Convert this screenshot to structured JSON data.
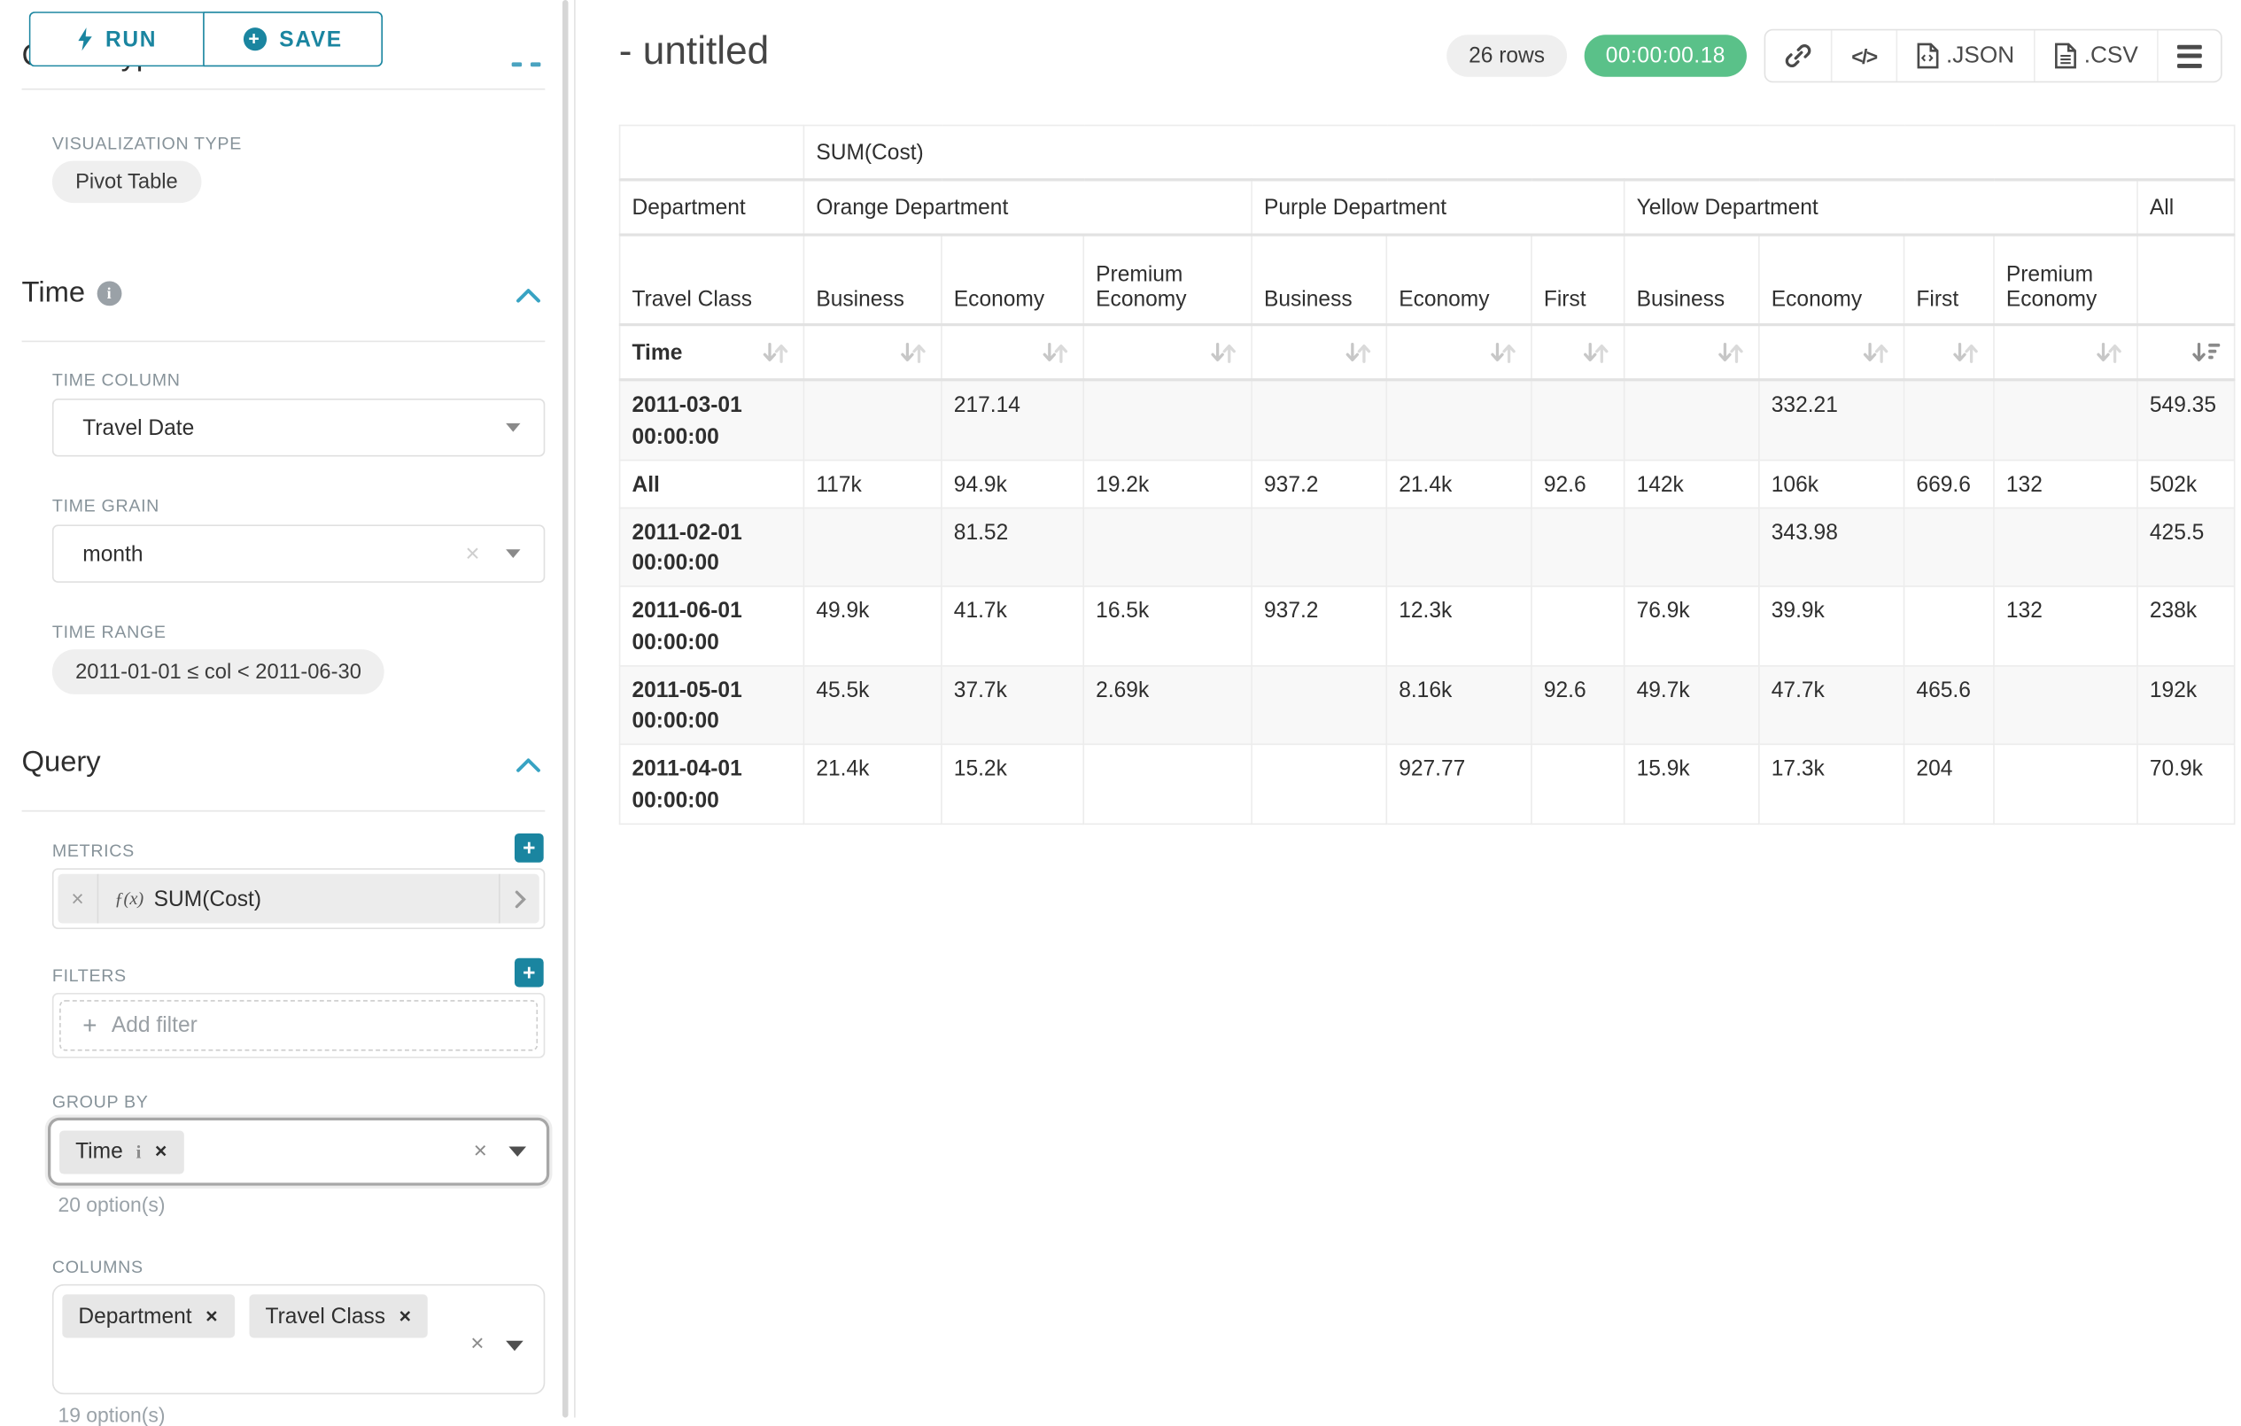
{
  "colors": {
    "accent_teal": "#1a85a0",
    "success_green": "#5ac189"
  },
  "sidebar": {
    "run_label": "RUN",
    "save_label": "SAVE",
    "clipped_heading": "Chart Type",
    "visualization": {
      "label": "VISUALIZATION TYPE",
      "value": "Pivot Table"
    },
    "time_section": {
      "title": "Time",
      "time_column": {
        "label": "TIME COLUMN",
        "value": "Travel Date"
      },
      "time_grain": {
        "label": "TIME GRAIN",
        "value": "month"
      },
      "time_range": {
        "label": "TIME RANGE",
        "value": "2011-01-01 ≤ col < 2011-06-30"
      }
    },
    "query_section": {
      "title": "Query",
      "metrics": {
        "label": "METRICS",
        "fx": "ƒ(x)",
        "value": "SUM(Cost)"
      },
      "filters": {
        "label": "FILTERS",
        "placeholder": "Add filter"
      },
      "group_by": {
        "label": "GROUP BY",
        "values": [
          "Time"
        ],
        "hint": "20 option(s)"
      },
      "columns": {
        "label": "COLUMNS",
        "values": [
          "Department",
          "Travel Class"
        ],
        "hint": "19 option(s)"
      }
    }
  },
  "header": {
    "title": "- untitled",
    "row_count": "26 rows",
    "timer": "00:00:00.18",
    "export_json_label": ".JSON",
    "export_csv_label": ".CSV"
  },
  "pivot_table": {
    "metric_header": "SUM(Cost)",
    "row_dim_label": "Department",
    "row_dim2_label": "Travel Class",
    "time_label": "Time",
    "col_groups": [
      {
        "label": "Orange Department",
        "cols": [
          "Business",
          "Economy",
          "Premium Economy"
        ]
      },
      {
        "label": "Purple Department",
        "cols": [
          "Business",
          "Economy",
          "First"
        ]
      },
      {
        "label": "Yellow Department",
        "cols": [
          "Business",
          "Economy",
          "First",
          "Premium Economy"
        ]
      },
      {
        "label": "All",
        "cols": [
          ""
        ]
      }
    ],
    "rows": [
      {
        "label": "2011-03-01 00:00:00",
        "cells": [
          "",
          "217.14",
          "",
          "",
          "",
          "",
          "",
          "332.21",
          "",
          "",
          "549.35"
        ]
      },
      {
        "label": "All",
        "cells": [
          "117k",
          "94.9k",
          "19.2k",
          "937.2",
          "21.4k",
          "92.6",
          "142k",
          "106k",
          "669.6",
          "132",
          "502k"
        ]
      },
      {
        "label": "2011-02-01 00:00:00",
        "cells": [
          "",
          "81.52",
          "",
          "",
          "",
          "",
          "",
          "343.98",
          "",
          "",
          "425.5"
        ]
      },
      {
        "label": "2011-06-01 00:00:00",
        "cells": [
          "49.9k",
          "41.7k",
          "16.5k",
          "937.2",
          "12.3k",
          "",
          "76.9k",
          "39.9k",
          "",
          "132",
          "238k"
        ]
      },
      {
        "label": "2011-05-01 00:00:00",
        "cells": [
          "45.5k",
          "37.7k",
          "2.69k",
          "",
          "8.16k",
          "92.6",
          "49.7k",
          "47.7k",
          "465.6",
          "",
          "192k"
        ]
      },
      {
        "label": "2011-04-01 00:00:00",
        "cells": [
          "21.4k",
          "15.2k",
          "",
          "",
          "927.77",
          "",
          "15.9k",
          "17.3k",
          "204",
          "",
          "70.9k"
        ]
      }
    ]
  }
}
